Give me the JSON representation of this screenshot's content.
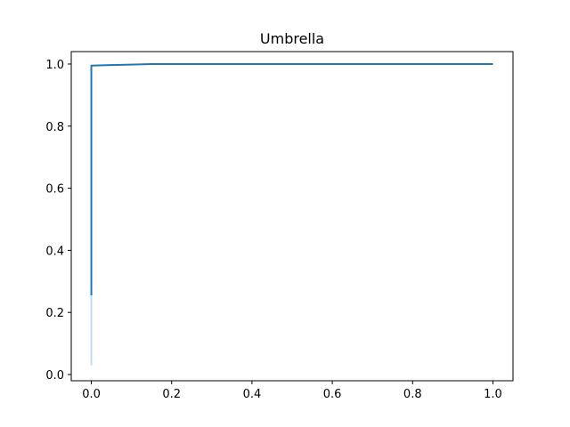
{
  "chart_data": {
    "type": "line",
    "title": "Umbrella",
    "xlabel": "",
    "ylabel": "",
    "xlim": [
      -0.05,
      1.05
    ],
    "ylim": [
      -0.02,
      1.04
    ],
    "grid": false,
    "x_ticks": [
      0.0,
      0.2,
      0.4,
      0.6,
      0.8,
      1.0
    ],
    "x_tick_labels": [
      "0.0",
      "0.2",
      "0.4",
      "0.6",
      "0.8",
      "1.0"
    ],
    "y_ticks": [
      0.0,
      0.2,
      0.4,
      0.6,
      0.8,
      1.0
    ],
    "y_tick_labels": [
      "0.0",
      "0.2",
      "0.4",
      "0.6",
      "0.8",
      "1.0"
    ],
    "series": [
      {
        "color": "#1f77b4",
        "x": [
          0.0,
          0.0,
          0.0,
          0.15,
          1.0
        ],
        "y": [
          0.255,
          0.995,
          0.995,
          1.0,
          1.0
        ],
        "band": {
          "x": 0.0,
          "y_low": 0.03,
          "y_high": 0.255,
          "color": "#c6dbef"
        }
      }
    ]
  }
}
